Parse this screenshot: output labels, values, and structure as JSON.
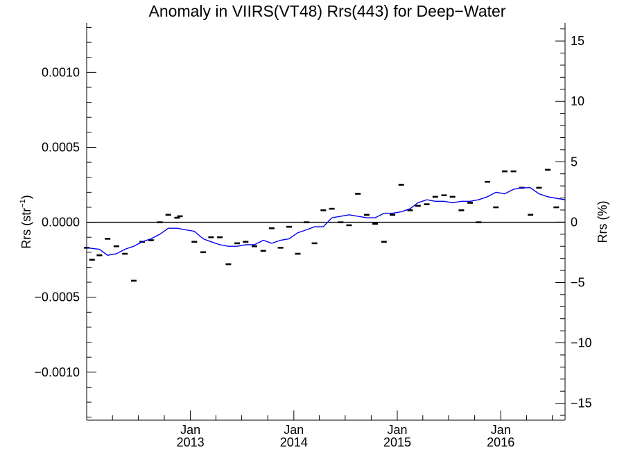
{
  "chart_data": {
    "type": "line",
    "title": "Anomaly in VIIRS(VT48) Rrs(443) for Deep−Water",
    "ylabel_left": "Rrs (str",
    "ylabel_left_sup": "−1",
    "ylabel_left_close": ")",
    "ylabel_right": "Rrs (%)",
    "ylim_left": [
      -0.00132,
      0.00133
    ],
    "ylim_right": [
      -16.4,
      16.5
    ],
    "y_left_ticks": [
      {
        "value": 0.001,
        "label": "0.0010"
      },
      {
        "value": 0.0005,
        "label": "0.0005"
      },
      {
        "value": 0.0,
        "label": "0.0000"
      },
      {
        "value": -0.0005,
        "label": "−0.0005"
      },
      {
        "value": -0.001,
        "label": "−0.0010"
      }
    ],
    "y_right_ticks": [
      {
        "value": 15,
        "label": "15"
      },
      {
        "value": 10,
        "label": "10"
      },
      {
        "value": 5,
        "label": "5"
      },
      {
        "value": 0,
        "label": "0"
      },
      {
        "value": -5,
        "label": "−5"
      },
      {
        "value": -10,
        "label": "−10"
      },
      {
        "value": -15,
        "label": "−15"
      }
    ],
    "xlim": [
      "2012-01-01",
      "2016-08-15"
    ],
    "x_ticks": [
      {
        "date": "2013-01-01",
        "month": "Jan",
        "year": "2013"
      },
      {
        "date": "2014-01-01",
        "month": "Jan",
        "year": "2014"
      },
      {
        "date": "2015-01-01",
        "month": "Jan",
        "year": "2015"
      },
      {
        "date": "2016-01-01",
        "month": "Jan",
        "year": "2016"
      }
    ],
    "reference_line": 0,
    "series": [
      {
        "kind": "markers",
        "color": "#000000",
        "points": [
          {
            "x": "2012-01-01",
            "y": -0.00017
          },
          {
            "x": "2012-01-20",
            "y": -0.00025
          },
          {
            "x": "2012-02-15",
            "y": -0.00022
          },
          {
            "x": "2012-03-15",
            "y": -0.00011
          },
          {
            "x": "2012-04-15",
            "y": -0.00016
          },
          {
            "x": "2012-05-15",
            "y": -0.00021
          },
          {
            "x": "2012-06-15",
            "y": -0.00039
          },
          {
            "x": "2012-07-15",
            "y": -0.00013
          },
          {
            "x": "2012-08-15",
            "y": -0.00012
          },
          {
            "x": "2012-09-15",
            "y": 0.0
          },
          {
            "x": "2012-10-15",
            "y": 5e-05
          },
          {
            "x": "2012-11-15",
            "y": 3e-05
          },
          {
            "x": "2012-11-25",
            "y": 4e-05
          },
          {
            "x": "2013-01-15",
            "y": -0.00013
          },
          {
            "x": "2013-02-15",
            "y": -0.0002
          },
          {
            "x": "2013-03-15",
            "y": -0.0001
          },
          {
            "x": "2013-04-15",
            "y": -0.0001
          },
          {
            "x": "2013-05-15",
            "y": -0.00028
          },
          {
            "x": "2013-06-15",
            "y": -0.00014
          },
          {
            "x": "2013-07-15",
            "y": -0.00013
          },
          {
            "x": "2013-08-15",
            "y": -0.00016
          },
          {
            "x": "2013-09-15",
            "y": -0.00019
          },
          {
            "x": "2013-10-15",
            "y": -4e-05
          },
          {
            "x": "2013-11-15",
            "y": -0.00017
          },
          {
            "x": "2013-12-15",
            "y": -3e-05
          },
          {
            "x": "2014-01-15",
            "y": -0.00021
          },
          {
            "x": "2014-02-15",
            "y": 0.0
          },
          {
            "x": "2014-03-15",
            "y": -0.00014
          },
          {
            "x": "2014-04-15",
            "y": 8e-05
          },
          {
            "x": "2014-05-15",
            "y": 9e-05
          },
          {
            "x": "2014-06-15",
            "y": 0.0
          },
          {
            "x": "2014-07-15",
            "y": -2e-05
          },
          {
            "x": "2014-08-15",
            "y": 0.00019
          },
          {
            "x": "2014-09-15",
            "y": 5e-05
          },
          {
            "x": "2014-10-15",
            "y": -1e-05
          },
          {
            "x": "2014-11-15",
            "y": -0.00013
          },
          {
            "x": "2014-12-15",
            "y": 5e-05
          },
          {
            "x": "2015-01-15",
            "y": 0.00025
          },
          {
            "x": "2015-02-15",
            "y": 8e-05
          },
          {
            "x": "2015-03-15",
            "y": 0.00011
          },
          {
            "x": "2015-04-15",
            "y": 0.00012
          },
          {
            "x": "2015-05-15",
            "y": 0.00017
          },
          {
            "x": "2015-06-15",
            "y": 0.00018
          },
          {
            "x": "2015-07-15",
            "y": 0.00017
          },
          {
            "x": "2015-08-15",
            "y": 8e-05
          },
          {
            "x": "2015-09-15",
            "y": 0.00013
          },
          {
            "x": "2015-10-15",
            "y": 0.0
          },
          {
            "x": "2015-11-15",
            "y": 0.00027
          },
          {
            "x": "2015-12-15",
            "y": 0.0001
          },
          {
            "x": "2016-01-15",
            "y": 0.00034
          },
          {
            "x": "2016-02-15",
            "y": 0.00034
          },
          {
            "x": "2016-03-15",
            "y": 0.00023
          },
          {
            "x": "2016-04-15",
            "y": 5e-05
          },
          {
            "x": "2016-05-15",
            "y": 0.00023
          },
          {
            "x": "2016-06-15",
            "y": 0.00035
          },
          {
            "x": "2016-07-15",
            "y": 0.0001
          }
        ]
      },
      {
        "kind": "line",
        "color": "#0000ee",
        "points": [
          {
            "x": "2012-01-01",
            "y": -0.00017
          },
          {
            "x": "2012-02-15",
            "y": -0.00018
          },
          {
            "x": "2012-03-15",
            "y": -0.00022
          },
          {
            "x": "2012-04-15",
            "y": -0.00021
          },
          {
            "x": "2012-05-15",
            "y": -0.00018
          },
          {
            "x": "2012-06-15",
            "y": -0.00016
          },
          {
            "x": "2012-07-15",
            "y": -0.00013
          },
          {
            "x": "2012-08-15",
            "y": -0.00011
          },
          {
            "x": "2012-09-15",
            "y": -8e-05
          },
          {
            "x": "2012-10-15",
            "y": -4e-05
          },
          {
            "x": "2012-11-15",
            "y": -4e-05
          },
          {
            "x": "2012-12-15",
            "y": -5e-05
          },
          {
            "x": "2013-01-15",
            "y": -6e-05
          },
          {
            "x": "2013-02-15",
            "y": -0.00011
          },
          {
            "x": "2013-03-15",
            "y": -0.00013
          },
          {
            "x": "2013-04-15",
            "y": -0.00015
          },
          {
            "x": "2013-05-15",
            "y": -0.00016
          },
          {
            "x": "2013-06-15",
            "y": -0.00016
          },
          {
            "x": "2013-07-15",
            "y": -0.00015
          },
          {
            "x": "2013-08-15",
            "y": -0.00015
          },
          {
            "x": "2013-09-15",
            "y": -0.00012
          },
          {
            "x": "2013-10-15",
            "y": -0.00014
          },
          {
            "x": "2013-11-15",
            "y": -0.00012
          },
          {
            "x": "2013-12-15",
            "y": -0.00011
          },
          {
            "x": "2014-01-15",
            "y": -7e-05
          },
          {
            "x": "2014-02-15",
            "y": -5e-05
          },
          {
            "x": "2014-03-15",
            "y": -3e-05
          },
          {
            "x": "2014-04-15",
            "y": -3e-05
          },
          {
            "x": "2014-05-15",
            "y": 3e-05
          },
          {
            "x": "2014-06-15",
            "y": 4e-05
          },
          {
            "x": "2014-07-15",
            "y": 5e-05
          },
          {
            "x": "2014-08-15",
            "y": 4e-05
          },
          {
            "x": "2014-09-15",
            "y": 3e-05
          },
          {
            "x": "2014-10-15",
            "y": 3e-05
          },
          {
            "x": "2014-11-15",
            "y": 6e-05
          },
          {
            "x": "2014-12-15",
            "y": 6e-05
          },
          {
            "x": "2015-01-15",
            "y": 7e-05
          },
          {
            "x": "2015-02-15",
            "y": 9e-05
          },
          {
            "x": "2015-03-15",
            "y": 0.00013
          },
          {
            "x": "2015-04-15",
            "y": 0.00015
          },
          {
            "x": "2015-05-15",
            "y": 0.00014
          },
          {
            "x": "2015-06-15",
            "y": 0.00014
          },
          {
            "x": "2015-07-15",
            "y": 0.00013
          },
          {
            "x": "2015-08-15",
            "y": 0.00014
          },
          {
            "x": "2015-09-15",
            "y": 0.00014
          },
          {
            "x": "2015-10-15",
            "y": 0.00015
          },
          {
            "x": "2015-11-15",
            "y": 0.00017
          },
          {
            "x": "2015-12-15",
            "y": 0.0002
          },
          {
            "x": "2016-01-15",
            "y": 0.00019
          },
          {
            "x": "2016-02-15",
            "y": 0.00022
          },
          {
            "x": "2016-03-15",
            "y": 0.00023
          },
          {
            "x": "2016-04-15",
            "y": 0.00023
          },
          {
            "x": "2016-05-15",
            "y": 0.00019
          },
          {
            "x": "2016-06-15",
            "y": 0.00017
          },
          {
            "x": "2016-07-15",
            "y": 0.00016
          },
          {
            "x": "2016-08-15",
            "y": 0.00015
          }
        ]
      }
    ]
  }
}
